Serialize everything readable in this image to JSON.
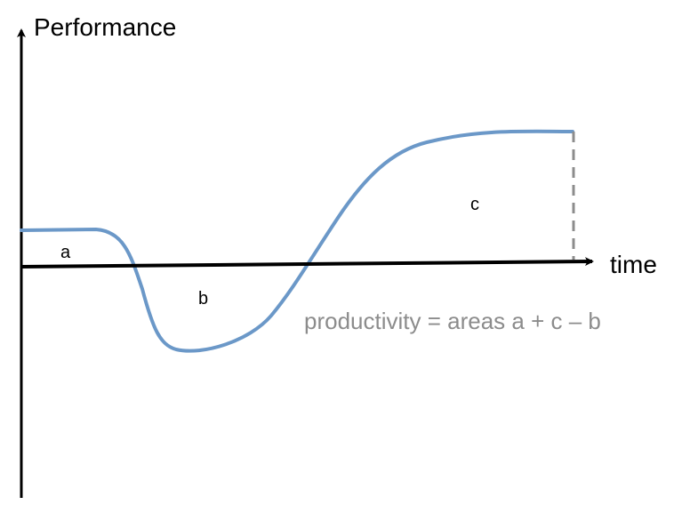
{
  "diagram": {
    "y_axis_label": "Performance",
    "x_axis_label": "time",
    "area_labels": {
      "a": "a",
      "b": "b",
      "c": "c"
    },
    "formula": "productivity = areas a + c – b",
    "colors": {
      "curve": "#6b98c8",
      "axes": "#000000",
      "dashed_line": "#8c8c8c",
      "formula_text": "#8c8c8c"
    }
  }
}
